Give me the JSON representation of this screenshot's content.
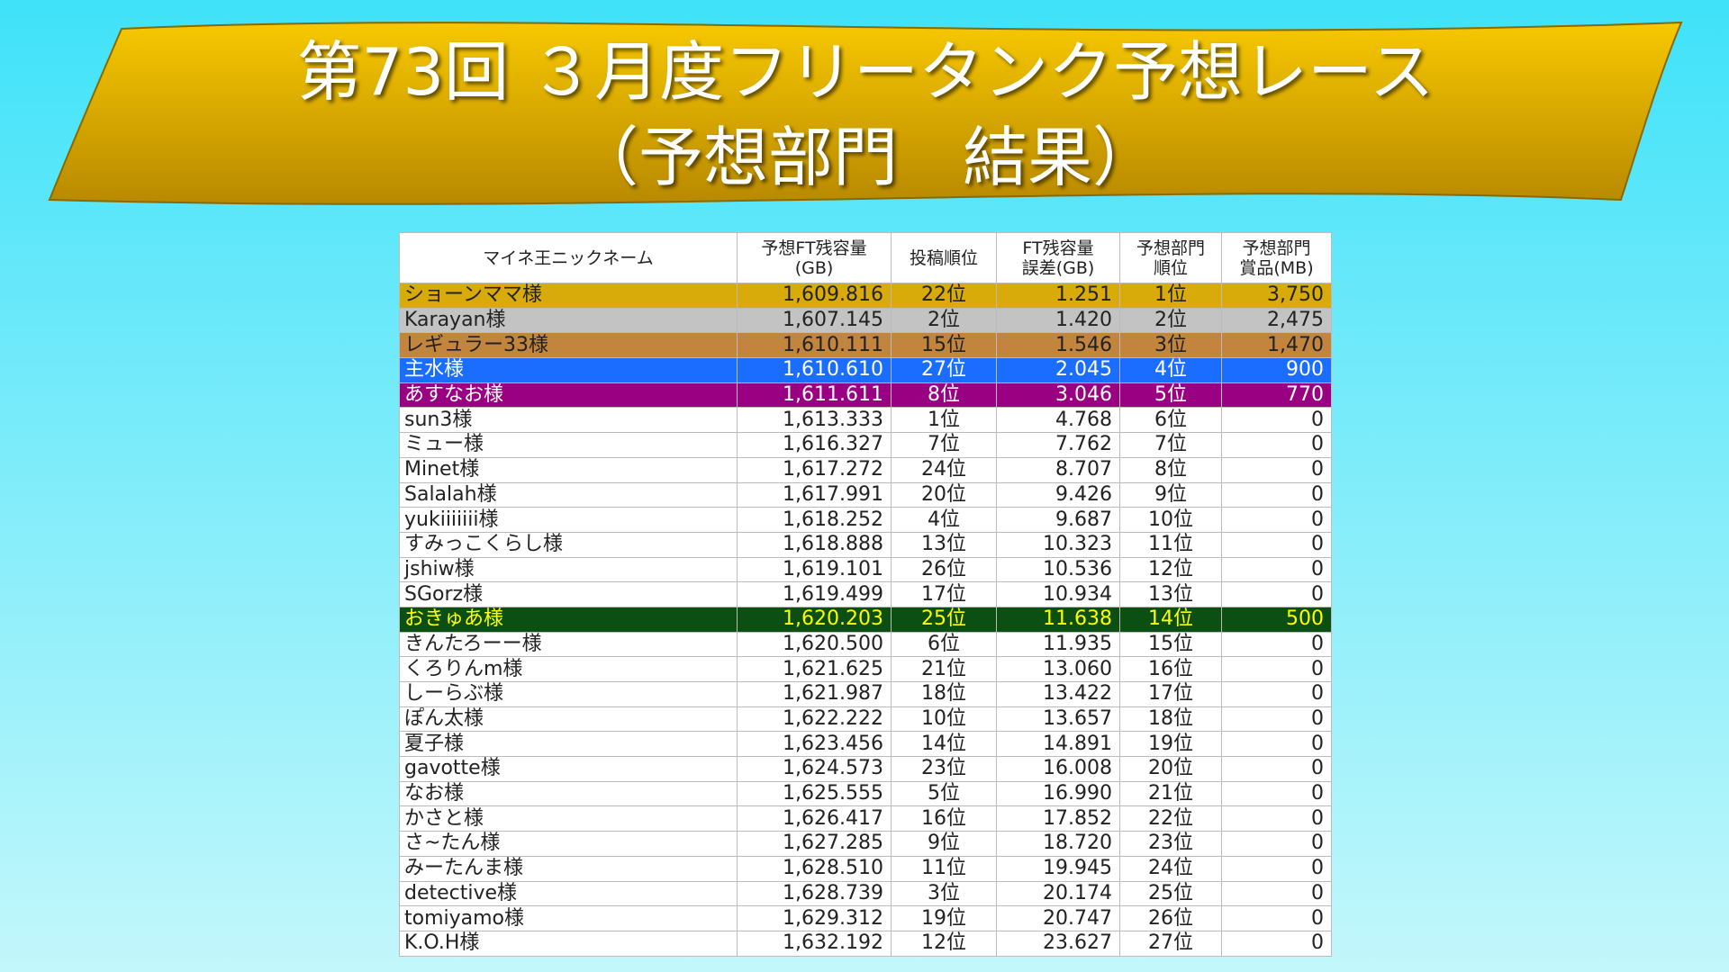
{
  "header": {
    "title": [
      "第73回 ３月度フリータンク予想レース",
      "（予想部門　結果）"
    ]
  },
  "table": {
    "columns": [
      [
        "マイネ王ニックネーム"
      ],
      [
        "予想FT残容量",
        "(GB)"
      ],
      [
        "投稿順位"
      ],
      [
        "FT残容量",
        "誤差(GB)"
      ],
      [
        "予想部門",
        "順位"
      ],
      [
        "予想部門",
        "賞品(MB)"
      ]
    ],
    "rows": [
      [
        "ショーンママ様",
        "1,609.816",
        "22位",
        "1.251",
        "1位",
        "3,750"
      ],
      [
        "Karayan様",
        "1,607.145",
        "2位",
        "1.420",
        "2位",
        "2,475"
      ],
      [
        "レギュラー33様",
        "1,610.111",
        "15位",
        "1.546",
        "3位",
        "1,470"
      ],
      [
        "主水様",
        "1,610.610",
        "27位",
        "2.045",
        "4位",
        "900"
      ],
      [
        "あすなお様",
        "1,611.611",
        "8位",
        "3.046",
        "5位",
        "770"
      ],
      [
        "sun3様",
        "1,613.333",
        "1位",
        "4.768",
        "6位",
        "0"
      ],
      [
        "ミュー様",
        "1,616.327",
        "7位",
        "7.762",
        "7位",
        "0"
      ],
      [
        "Minet様",
        "1,617.272",
        "24位",
        "8.707",
        "8位",
        "0"
      ],
      [
        "Salalah様",
        "1,617.991",
        "20位",
        "9.426",
        "9位",
        "0"
      ],
      [
        "yukiiiiiii様",
        "1,618.252",
        "4位",
        "9.687",
        "10位",
        "0"
      ],
      [
        "すみっこくらし様",
        "1,618.888",
        "13位",
        "10.323",
        "11位",
        "0"
      ],
      [
        "jshiw様",
        "1,619.101",
        "26位",
        "10.536",
        "12位",
        "0"
      ],
      [
        "SGorz様",
        "1,619.499",
        "17位",
        "10.934",
        "13位",
        "0"
      ],
      [
        "おきゅあ様",
        "1,620.203",
        "25位",
        "11.638",
        "14位",
        "500"
      ],
      [
        "きんたろーー様",
        "1,620.500",
        "6位",
        "11.935",
        "15位",
        "0"
      ],
      [
        "くろりんm様",
        "1,621.625",
        "21位",
        "13.060",
        "16位",
        "0"
      ],
      [
        "しーらぶ様",
        "1,621.987",
        "18位",
        "13.422",
        "17位",
        "0"
      ],
      [
        "ぽん太様",
        "1,622.222",
        "10位",
        "13.657",
        "18位",
        "0"
      ],
      [
        "夏子様",
        "1,623.456",
        "14位",
        "14.891",
        "19位",
        "0"
      ],
      [
        "gavotte様",
        "1,624.573",
        "23位",
        "16.008",
        "20位",
        "0"
      ],
      [
        "なお様",
        "1,625.555",
        "5位",
        "16.990",
        "21位",
        "0"
      ],
      [
        "かさと様",
        "1,626.417",
        "16位",
        "17.852",
        "22位",
        "0"
      ],
      [
        "さ~たん様",
        "1,627.285",
        "9位",
        "18.720",
        "23位",
        "0"
      ],
      [
        "みーたんま様",
        "1,628.510",
        "11位",
        "19.945",
        "24位",
        "0"
      ],
      [
        "detective様",
        "1,628.739",
        "3位",
        "20.174",
        "25位",
        "0"
      ],
      [
        "tomiyamo様",
        "1,629.312",
        "19位",
        "20.747",
        "26位",
        "0"
      ],
      [
        "K.O.H様",
        "1,632.192",
        "12位",
        "23.627",
        "27位",
        "0"
      ]
    ]
  }
}
